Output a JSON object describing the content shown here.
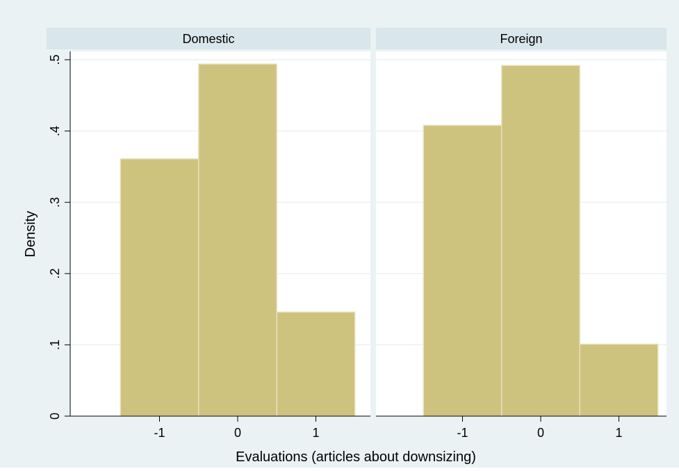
{
  "chart_data": {
    "type": "bar",
    "subtype": "histogram-by-panel",
    "xlabel": "Evaluations (articles about downsizing)",
    "ylabel": "Density",
    "ylim": [
      0,
      0.5
    ],
    "y_ticks": [
      0,
      0.1,
      0.2,
      0.3,
      0.4,
      0.5
    ],
    "y_tick_labels": [
      "0",
      ".1",
      ".2",
      ".3",
      ".4",
      ".5"
    ],
    "xlim": [
      -2,
      1.5
    ],
    "x_ticks": [
      -1,
      0,
      1
    ],
    "x_tick_labels": [
      "-1",
      "0",
      "1"
    ],
    "bin_width": 1,
    "grid": true,
    "colors": {
      "outer_background": "#eaf2f3",
      "panel_background": "#ffffff",
      "strip_background": "#d9e6eb",
      "bar_fill": "#cdc37f",
      "bar_edge": "#e8e2bf",
      "grid": "#eaf2f3"
    },
    "panels": [
      {
        "title": "Domestic",
        "bins": [
          {
            "center": -1,
            "density": 0.361
          },
          {
            "center": 0,
            "density": 0.494
          },
          {
            "center": 1,
            "density": 0.146
          }
        ]
      },
      {
        "title": "Foreign",
        "bins": [
          {
            "center": -1,
            "density": 0.408
          },
          {
            "center": 0,
            "density": 0.492
          },
          {
            "center": 1,
            "density": 0.101
          }
        ]
      }
    ]
  }
}
